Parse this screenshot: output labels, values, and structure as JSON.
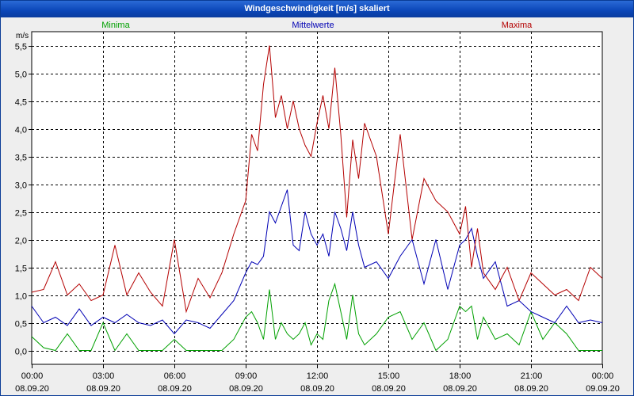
{
  "window": {
    "title": "Windgeschwindigkeit [m/s] skaliert"
  },
  "chart_data": {
    "type": "line",
    "title": "Windgeschwindigkeit [m/s] skaliert",
    "ylabel": "m/s",
    "xlabel": "",
    "ylim": [
      -0.25,
      5.75
    ],
    "xlim": [
      0,
      24
    ],
    "grid": true,
    "yticks": [
      {
        "value": 0.0,
        "label": "0,0"
      },
      {
        "value": 0.5,
        "label": "0,5"
      },
      {
        "value": 1.0,
        "label": "1,0"
      },
      {
        "value": 1.5,
        "label": "1,5"
      },
      {
        "value": 2.0,
        "label": "2,0"
      },
      {
        "value": 2.5,
        "label": "2,5"
      },
      {
        "value": 3.0,
        "label": "3,0"
      },
      {
        "value": 3.5,
        "label": "3,5"
      },
      {
        "value": 4.0,
        "label": "4,0"
      },
      {
        "value": 4.5,
        "label": "4,5"
      },
      {
        "value": 5.0,
        "label": "5,0"
      },
      {
        "value": 5.5,
        "label": "5,5"
      }
    ],
    "xticks": [
      {
        "value": 0,
        "time": "00:00",
        "date": "08.09.20"
      },
      {
        "value": 3,
        "time": "03:00",
        "date": "08.09.20"
      },
      {
        "value": 6,
        "time": "06:00",
        "date": "08.09.20"
      },
      {
        "value": 9,
        "time": "09:00",
        "date": "08.09.20"
      },
      {
        "value": 12,
        "time": "12:00",
        "date": "08.09.20"
      },
      {
        "value": 15,
        "time": "15:00",
        "date": "08.09.20"
      },
      {
        "value": 18,
        "time": "18:00",
        "date": "08.09.20"
      },
      {
        "value": 21,
        "time": "21:00",
        "date": "08.09.20"
      },
      {
        "value": 24,
        "time": "00:00",
        "date": "09.09.20"
      }
    ],
    "series": [
      {
        "name": "Minima",
        "color": "#00a000",
        "x": [
          0,
          0.5,
          1,
          1.5,
          2,
          2.5,
          3,
          3.5,
          4,
          4.5,
          5,
          5.5,
          6,
          6.5,
          7,
          7.5,
          8,
          8.5,
          9,
          9.25,
          9.5,
          9.75,
          10,
          10.25,
          10.5,
          10.75,
          11,
          11.25,
          11.5,
          11.75,
          12,
          12.25,
          12.5,
          12.75,
          13,
          13.25,
          13.5,
          13.75,
          14,
          14.5,
          15,
          15.5,
          16,
          16.5,
          17,
          17.5,
          18,
          18.25,
          18.5,
          18.75,
          19,
          19.5,
          20,
          20.5,
          21,
          21.5,
          22,
          22.5,
          23,
          23.5,
          24
        ],
        "values": [
          0.25,
          0.05,
          0.0,
          0.3,
          0.0,
          0.0,
          0.5,
          0.0,
          0.3,
          0.0,
          0.0,
          0.0,
          0.2,
          0.0,
          0.0,
          0.0,
          0.0,
          0.2,
          0.6,
          0.7,
          0.5,
          0.2,
          1.1,
          0.2,
          0.5,
          0.3,
          0.2,
          0.3,
          0.5,
          0.1,
          0.3,
          0.2,
          0.9,
          1.2,
          0.7,
          0.2,
          1.0,
          0.3,
          0.1,
          0.3,
          0.6,
          0.7,
          0.2,
          0.5,
          0.0,
          0.2,
          0.8,
          0.7,
          0.8,
          0.2,
          0.6,
          0.2,
          0.3,
          0.1,
          0.7,
          0.2,
          0.5,
          0.3,
          0.0,
          0.0,
          0.0
        ]
      },
      {
        "name": "Mittelwerte",
        "color": "#0000b4",
        "x": [
          0,
          0.5,
          1,
          1.5,
          2,
          2.5,
          3,
          3.5,
          4,
          4.5,
          5,
          5.5,
          6,
          6.5,
          7,
          7.5,
          8,
          8.5,
          9,
          9.25,
          9.5,
          9.75,
          10,
          10.25,
          10.5,
          10.75,
          11,
          11.25,
          11.5,
          11.75,
          12,
          12.25,
          12.5,
          12.75,
          13,
          13.25,
          13.5,
          13.75,
          14,
          14.5,
          15,
          15.5,
          16,
          16.5,
          17,
          17.5,
          18,
          18.25,
          18.5,
          18.75,
          19,
          19.5,
          20,
          20.5,
          21,
          21.5,
          22,
          22.5,
          23,
          23.5,
          24
        ],
        "values": [
          0.8,
          0.5,
          0.6,
          0.45,
          0.75,
          0.45,
          0.6,
          0.5,
          0.65,
          0.5,
          0.45,
          0.55,
          0.3,
          0.55,
          0.5,
          0.4,
          0.65,
          0.9,
          1.4,
          1.6,
          1.55,
          1.7,
          2.5,
          2.3,
          2.6,
          2.9,
          1.9,
          1.8,
          2.5,
          2.1,
          1.9,
          2.1,
          1.7,
          2.5,
          2.2,
          1.8,
          2.5,
          1.9,
          1.5,
          1.6,
          1.3,
          1.7,
          2.0,
          1.2,
          2.0,
          1.1,
          1.9,
          2.0,
          2.2,
          1.7,
          1.3,
          1.6,
          0.8,
          0.9,
          0.7,
          0.6,
          0.5,
          0.8,
          0.5,
          0.55,
          0.5
        ]
      },
      {
        "name": "Maxima",
        "color": "#b40000",
        "x": [
          0,
          0.5,
          1,
          1.5,
          2,
          2.5,
          3,
          3.5,
          4,
          4.5,
          5,
          5.5,
          6,
          6.5,
          7,
          7.5,
          8,
          8.5,
          9,
          9.25,
          9.5,
          9.75,
          10,
          10.25,
          10.5,
          10.75,
          11,
          11.25,
          11.5,
          11.75,
          12,
          12.25,
          12.5,
          12.75,
          13,
          13.25,
          13.5,
          13.75,
          14,
          14.5,
          15,
          15.5,
          16,
          16.5,
          17,
          17.5,
          18,
          18.25,
          18.5,
          18.75,
          19,
          19.5,
          20,
          20.5,
          21,
          21.5,
          22,
          22.5,
          23,
          23.5,
          24
        ],
        "values": [
          1.05,
          1.1,
          1.6,
          1.0,
          1.2,
          0.9,
          1.0,
          1.9,
          1.0,
          1.4,
          1.05,
          0.8,
          2.0,
          0.7,
          1.3,
          0.95,
          1.4,
          2.1,
          2.7,
          3.9,
          3.6,
          4.8,
          5.5,
          4.2,
          4.6,
          4.0,
          4.5,
          4.0,
          3.7,
          3.5,
          4.1,
          4.6,
          4.0,
          5.1,
          3.9,
          2.4,
          3.8,
          3.1,
          4.1,
          3.5,
          2.1,
          3.9,
          2.0,
          3.1,
          2.7,
          2.5,
          2.1,
          2.6,
          1.5,
          2.2,
          1.4,
          1.1,
          1.5,
          0.9,
          1.4,
          1.2,
          1.0,
          1.1,
          0.9,
          1.5,
          1.3
        ]
      }
    ]
  }
}
